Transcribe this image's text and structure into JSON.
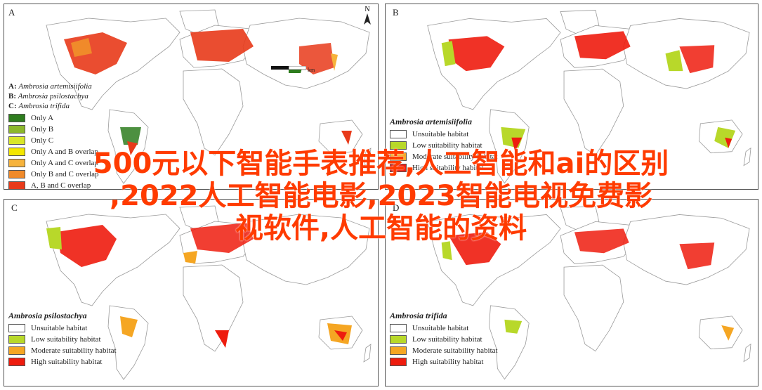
{
  "panels": [
    {
      "label": "A",
      "species_list": [
        {
          "code": "A:",
          "name": "Ambrosia artemisiifolia"
        },
        {
          "code": "B:",
          "name": "Ambrosia psilostachya"
        },
        {
          "code": "C:",
          "name": "Ambrosia trifida"
        }
      ],
      "legend": [
        {
          "text": "Only A",
          "color": "#2e7d1e"
        },
        {
          "text": "Only B",
          "color": "#8cb82c"
        },
        {
          "text": "Only C",
          "color": "#d8e62a"
        },
        {
          "text": "Only A and B overlap",
          "color": "#f4e700"
        },
        {
          "text": "Only A and C overlap",
          "color": "#f6b33c"
        },
        {
          "text": "Only B and C overlap",
          "color": "#f08a2a"
        },
        {
          "text": "A, B and C overlap",
          "color": "#e83a1a"
        }
      ],
      "north": "N",
      "scale_unit": "km"
    },
    {
      "label": "B",
      "title": "Ambrosia artemisiifolia",
      "legend": [
        {
          "text": "Unsuitable habitat",
          "color": "#ffffff"
        },
        {
          "text": "Low suitability habitat",
          "color": "#b8d82a"
        },
        {
          "text": "Moderate suitability habitat",
          "color": "#f5a623"
        },
        {
          "text": "High suitability habitat",
          "color": "#ee1c0e"
        }
      ]
    },
    {
      "label": "C",
      "title": "Ambrosia psilostachya",
      "legend": [
        {
          "text": "Unsuitable habitat",
          "color": "#ffffff"
        },
        {
          "text": "Low suitability habitat",
          "color": "#b8d82a"
        },
        {
          "text": "Moderate suitability habitat",
          "color": "#f5a623"
        },
        {
          "text": "High suitability habitat",
          "color": "#ee1c0e"
        }
      ]
    },
    {
      "label": "D",
      "title": "Ambrosia trifida",
      "legend": [
        {
          "text": "Unsuitable habitat",
          "color": "#ffffff"
        },
        {
          "text": "Low suitability habitat",
          "color": "#b8d82a"
        },
        {
          "text": "Moderate suitability habitat",
          "color": "#f5a623"
        },
        {
          "text": "High suitability habitat",
          "color": "#ee1c0e"
        }
      ]
    }
  ],
  "overlay_text": {
    "line1": "500元以下智能手表推荐,人工智能和ai的区别",
    "line2": ",2022人工智能电影,2023智能电视免费影",
    "line3": "视软件,人工智能的资料"
  }
}
